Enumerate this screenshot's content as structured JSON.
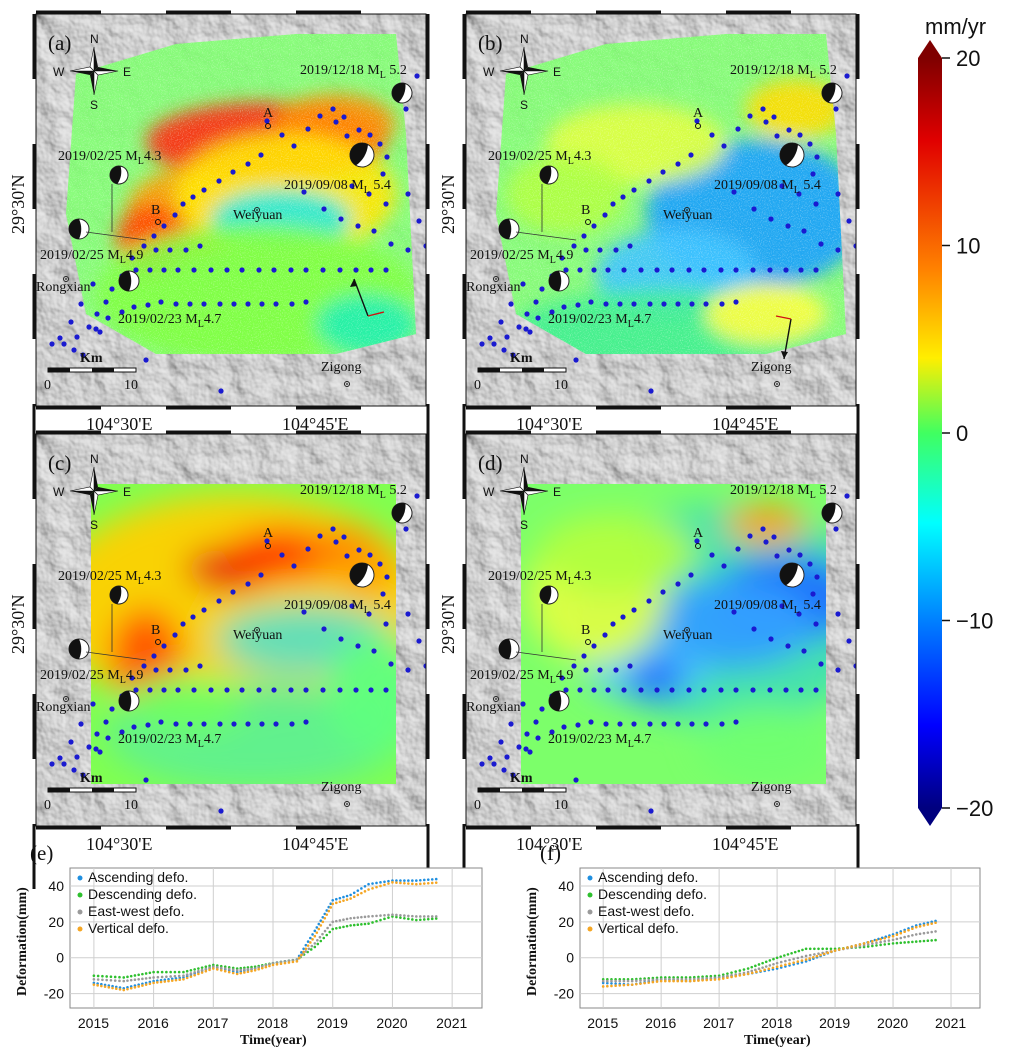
{
  "colorbar": {
    "unit": "mm/yr",
    "ticks": [
      20,
      10,
      0,
      -10,
      -20
    ],
    "tick_labels": [
      "20",
      "10",
      "0",
      "−10",
      "−20"
    ],
    "range": [
      -20,
      20
    ],
    "colors": [
      "#00007f",
      "#0000ff",
      "#0080ff",
      "#00ffff",
      "#40ff80",
      "#80ff40",
      "#ffff00",
      "#ff8000",
      "#ff0000",
      "#7f0000"
    ]
  },
  "maps": [
    {
      "panel": "(a)",
      "style": "ascending"
    },
    {
      "panel": "(b)",
      "style": "descending"
    },
    {
      "panel": "(c)",
      "style": "eastwest"
    },
    {
      "panel": "(d)",
      "style": "vertical"
    }
  ],
  "map_labels": {
    "compass": {
      "n": "N",
      "s": "S",
      "e": "E",
      "w": "W"
    },
    "events": [
      {
        "text": "2019/12/18 M",
        "sub": "L",
        "after": " 5.2"
      },
      {
        "text": "2019/02/25 M",
        "sub": "L",
        "after": "4.3"
      },
      {
        "text": "2019/09/08 M",
        "sub": "L",
        "after": " 5.4"
      },
      {
        "text": "2019/02/25 M",
        "sub": "L",
        "after": "4.9"
      },
      {
        "text": "2019/02/23 M",
        "sub": "L",
        "after": "4.7"
      }
    ],
    "places": [
      "Weiyuan",
      "Rongxian",
      "Zigong"
    ],
    "points": [
      "A",
      "B"
    ],
    "scale_unit": "Km",
    "scale_ticks": [
      "0",
      "10"
    ],
    "lon_ticks": [
      "104°30'E",
      "104°45'E"
    ],
    "lat_tick": "29°30'N"
  },
  "chart_data": [
    {
      "panel": "(e)",
      "type": "scatter",
      "title": "",
      "xlabel": "Time(year)",
      "ylabel": "Deformation(mm)",
      "xlim": [
        2014.6,
        2021.5
      ],
      "ylim": [
        -28,
        50
      ],
      "xticks": [
        2015,
        2016,
        2017,
        2018,
        2019,
        2020,
        2021
      ],
      "yticks": [
        -20,
        0,
        20,
        40
      ],
      "legend": "top-left",
      "series": [
        {
          "name": "Ascending defo.",
          "color": "#1f8fe0",
          "x": [
            2015.0,
            2015.5,
            2016.0,
            2016.5,
            2017.0,
            2017.4,
            2017.7,
            2018.0,
            2018.4,
            2018.7,
            2019.0,
            2019.3,
            2019.6,
            2020.0,
            2020.4,
            2020.8
          ],
          "values": [
            -14,
            -17,
            -13,
            -11,
            -5,
            -8,
            -6,
            -3,
            -1,
            15,
            32,
            35,
            41,
            43,
            43,
            44
          ]
        },
        {
          "name": "Descending defo.",
          "color": "#2ec02e",
          "x": [
            2015.0,
            2015.5,
            2016.0,
            2016.5,
            2017.0,
            2017.4,
            2017.7,
            2018.0,
            2018.4,
            2018.7,
            2019.0,
            2019.3,
            2019.6,
            2020.0,
            2020.4,
            2020.8
          ],
          "values": [
            -10,
            -11,
            -8,
            -8,
            -4,
            -6,
            -5,
            -3,
            -1,
            6,
            16,
            18,
            19,
            23,
            21,
            22
          ]
        },
        {
          "name": "East-west  defo.",
          "color": "#9a9a9a",
          "x": [
            2015.0,
            2015.5,
            2016.0,
            2016.5,
            2017.0,
            2017.4,
            2017.7,
            2018.0,
            2018.4,
            2018.7,
            2019.0,
            2019.3,
            2019.6,
            2020.0,
            2020.4,
            2020.8
          ],
          "values": [
            -12,
            -13,
            -11,
            -10,
            -5,
            -7,
            -6,
            -3,
            -1,
            8,
            20,
            22,
            23,
            24,
            23,
            23
          ]
        },
        {
          "name": "Vertical defo.",
          "color": "#f5a623",
          "x": [
            2015.0,
            2015.5,
            2016.0,
            2016.5,
            2017.0,
            2017.4,
            2017.7,
            2018.0,
            2018.4,
            2018.7,
            2019.0,
            2019.3,
            2019.6,
            2020.0,
            2020.4,
            2020.8
          ],
          "values": [
            -15,
            -18,
            -14,
            -12,
            -6,
            -9,
            -7,
            -4,
            -2,
            12,
            30,
            33,
            38,
            42,
            41,
            42
          ]
        }
      ]
    },
    {
      "panel": "(f)",
      "type": "scatter",
      "title": "",
      "xlabel": "Time(year)",
      "ylabel": "Deformation(mm)",
      "xlim": [
        2014.6,
        2021.5
      ],
      "ylim": [
        -28,
        50
      ],
      "xticks": [
        2015,
        2016,
        2017,
        2018,
        2019,
        2020,
        2021
      ],
      "yticks": [
        -20,
        0,
        20,
        40
      ],
      "legend": "top-left",
      "series": [
        {
          "name": "Ascending defo.",
          "color": "#1f8fe0",
          "x": [
            2015.0,
            2015.5,
            2016.0,
            2016.5,
            2017.0,
            2017.5,
            2018.0,
            2018.5,
            2019.0,
            2019.5,
            2020.0,
            2020.4,
            2020.8
          ],
          "values": [
            -14,
            -15,
            -12,
            -13,
            -11,
            -9,
            -6,
            -2,
            4,
            8,
            13,
            18,
            21
          ]
        },
        {
          "name": "Descending defo.",
          "color": "#2ec02e",
          "x": [
            2015.0,
            2015.5,
            2016.0,
            2016.5,
            2017.0,
            2017.5,
            2018.0,
            2018.5,
            2019.0,
            2019.5,
            2020.0,
            2020.4,
            2020.8
          ],
          "values": [
            -12,
            -12,
            -11,
            -11,
            -10,
            -6,
            0,
            5,
            5,
            6,
            8,
            9,
            10
          ]
        },
        {
          "name": "East-west  defo.",
          "color": "#9a9a9a",
          "x": [
            2015.0,
            2015.5,
            2016.0,
            2016.5,
            2017.0,
            2017.5,
            2018.0,
            2018.5,
            2019.0,
            2019.5,
            2020.0,
            2020.4,
            2020.8
          ],
          "values": [
            -13,
            -13,
            -12,
            -12,
            -11,
            -8,
            -3,
            1,
            4,
            7,
            10,
            13,
            15
          ]
        },
        {
          "name": "Vertical defo.",
          "color": "#f5a623",
          "x": [
            2015.0,
            2015.5,
            2016.0,
            2016.5,
            2017.0,
            2017.5,
            2018.0,
            2018.5,
            2019.0,
            2019.5,
            2020.0,
            2020.4,
            2020.8
          ],
          "values": [
            -16,
            -15,
            -13,
            -13,
            -12,
            -9,
            -5,
            -1,
            4,
            8,
            12,
            17,
            20
          ]
        }
      ]
    }
  ]
}
